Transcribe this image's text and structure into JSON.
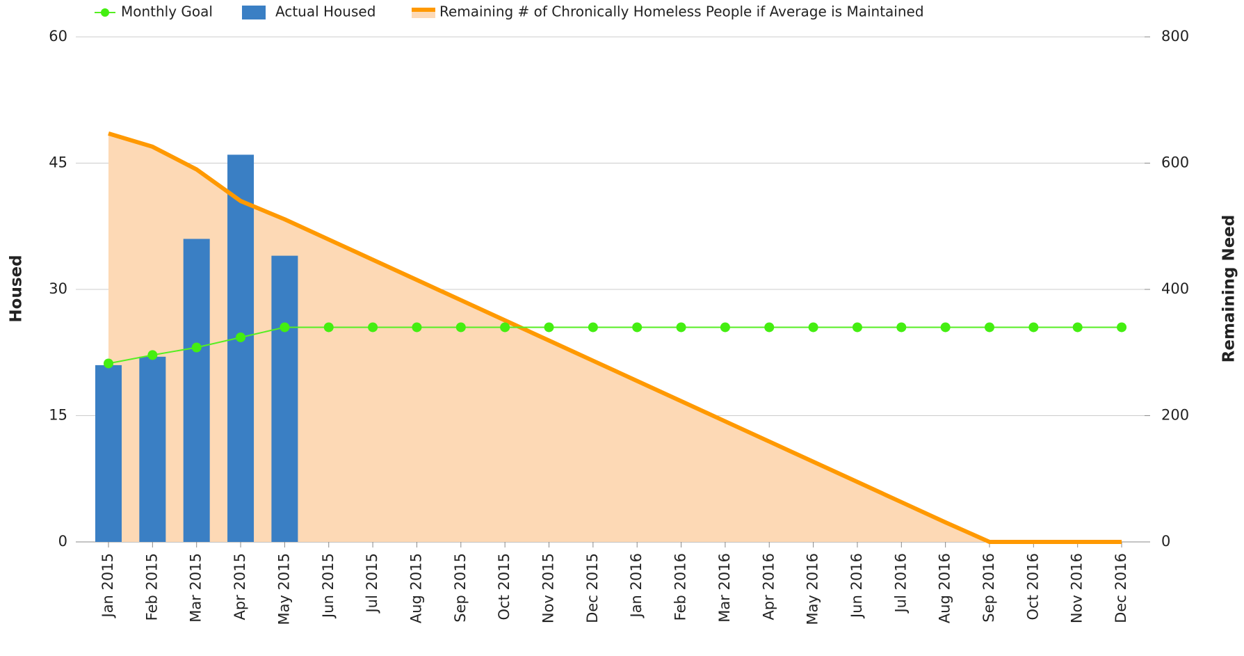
{
  "chart_data": {
    "type": "combo",
    "categories": [
      "Jan 2015",
      "Feb 2015",
      "Mar 2015",
      "Apr 2015",
      "May 2015",
      "Jun 2015",
      "Jul 2015",
      "Aug 2015",
      "Sep 2015",
      "Oct 2015",
      "Nov 2015",
      "Dec 2015",
      "Jan 2016",
      "Feb 2016",
      "Mar 2016",
      "Apr 2016",
      "May 2016",
      "Jun 2016",
      "Jul 2016",
      "Aug 2016",
      "Sep 2016",
      "Oct 2016",
      "Nov 2016",
      "Dec 2016"
    ],
    "y_label": "Housed",
    "y2_label": "Remaining Need",
    "ylim": [
      0,
      60
    ],
    "yticks": [
      0,
      15,
      30,
      45,
      60
    ],
    "y2lim": [
      0,
      800
    ],
    "y2ticks": [
      0,
      200,
      400,
      600,
      800
    ],
    "grid": true,
    "legend": "top",
    "series": [
      {
        "name": "Monthly Goal",
        "type": "line",
        "color": "#55ee22",
        "values": [
          21.2,
          22.2,
          23.1,
          24.3,
          25.5,
          25.5,
          25.5,
          25.5,
          25.5,
          25.5,
          25.5,
          25.5,
          25.5,
          25.5,
          25.5,
          25.5,
          25.5,
          25.5,
          25.5,
          25.5,
          25.5,
          25.5,
          25.5,
          25.5
        ]
      },
      {
        "name": "Actual Housed",
        "type": "bar",
        "color": "#3a7fc4",
        "values": [
          21,
          22,
          36,
          46,
          34,
          null,
          null,
          null,
          null,
          null,
          null,
          null,
          null,
          null,
          null,
          null,
          null,
          null,
          null,
          null,
          null,
          null,
          null,
          null
        ]
      },
      {
        "name": "Remaining # of Chronically Homeless People if Average is Maintained",
        "type": "area",
        "axis": "y2",
        "color": "#ff9900",
        "fill": "#fdd9b5",
        "values": [
          647,
          626,
          590,
          540,
          511,
          479,
          447,
          415,
          383,
          351,
          319,
          287,
          255,
          223,
          191,
          159,
          127,
          95,
          63,
          31,
          0,
          0,
          0,
          0
        ]
      }
    ]
  }
}
